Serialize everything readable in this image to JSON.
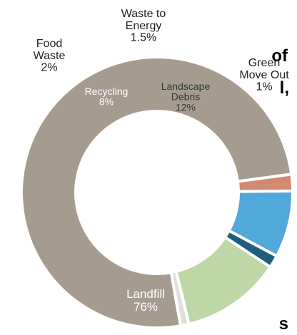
{
  "chart_data": {
    "type": "pie",
    "categories": [
      "Landfill",
      "Food Waste",
      "Recycling",
      "Waste to Energy",
      "Landscape Debris",
      "Green Move Out"
    ],
    "series": [
      {
        "values": [
          76,
          2,
          8,
          1.5,
          12,
          1
        ]
      }
    ],
    "value_labels": [
      "76%",
      "2%",
      "8%",
      "1.5%",
      "12%",
      "1%"
    ],
    "colors": [
      "#a59c8f",
      "#d28a71",
      "#52a8db",
      "#1f5e7d",
      "#bdd7a7",
      "#e3e0d9"
    ],
    "title": "",
    "legend": "none"
  },
  "edge_text": {
    "top_fragment": "of",
    "middle_fragment": "l,",
    "bottom_fragment": "s"
  }
}
